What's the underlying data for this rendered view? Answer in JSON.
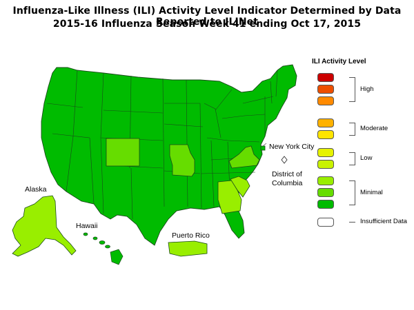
{
  "title_line1": "Influenza-Like Illness (ILI) Activity Level Indicator Determined by Data Reported to ILINet",
  "title_line2": "2015-16  Influenza Season Week  41 ending Oct 17, 2015",
  "labels": {
    "alaska": "Alaska",
    "hawaii": "Hawaii",
    "puerto_rico": "Puerto Rico",
    "new_york_city": "New York City",
    "dc_line1": "District of",
    "dc_line2": "Columbia"
  },
  "legend": {
    "title": "ILI Activity Level",
    "levels": [
      {
        "level": 10,
        "color": "#cc0000"
      },
      {
        "level": 9,
        "color": "#ee4f00"
      },
      {
        "level": 8,
        "color": "#ff8a00"
      },
      {
        "level": 7,
        "color": "#ffb200"
      },
      {
        "level": 6,
        "color": "#ffe500"
      },
      {
        "level": 5,
        "color": "#e6f300"
      },
      {
        "level": 4,
        "color": "#c9f200"
      },
      {
        "level": 3,
        "color": "#99ee00"
      },
      {
        "level": 2,
        "color": "#66dd00"
      },
      {
        "level": 1,
        "color": "#00bb00"
      }
    ],
    "groups": [
      "High",
      "Moderate",
      "Low",
      "Minimal"
    ],
    "insufficient": {
      "label": "Insufficient Data",
      "color": "#ffffff"
    }
  },
  "region_levels": {
    "mainland": 1,
    "colorado": 2,
    "missouri": 2,
    "virginia": 2,
    "georgia": 3,
    "south_carolina": 3,
    "alaska": 3,
    "puerto_rico": 3,
    "hawaii": 1,
    "dc": "insufficient"
  }
}
